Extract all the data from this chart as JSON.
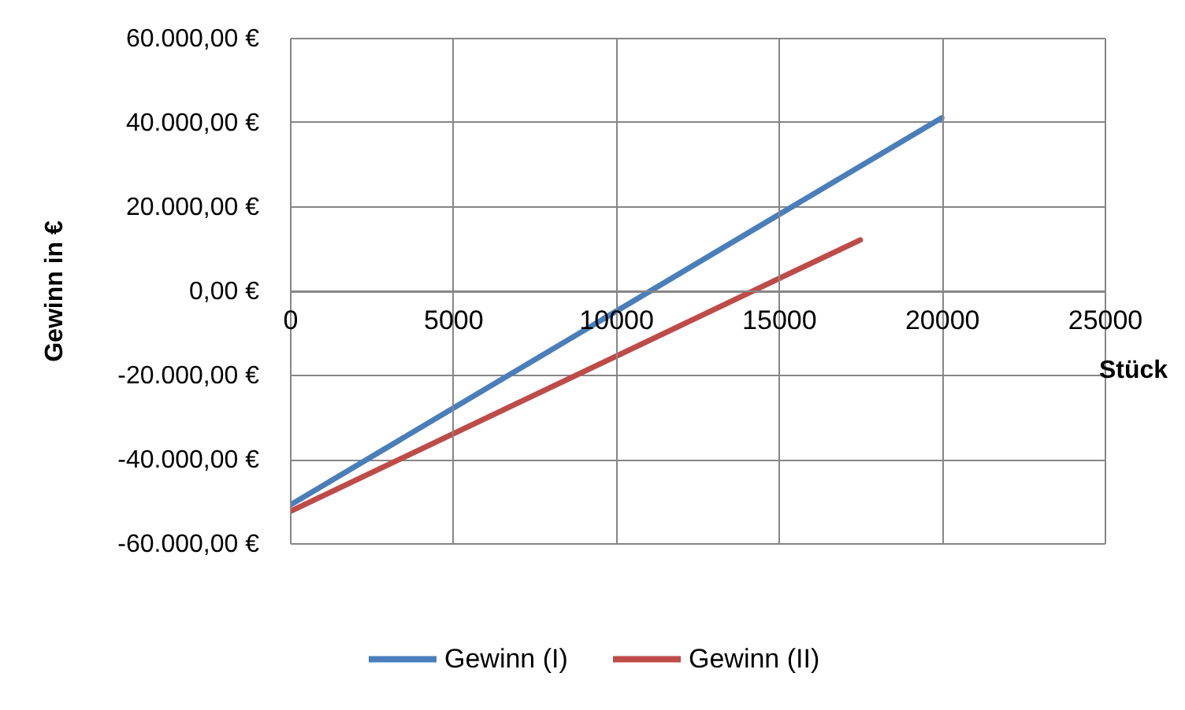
{
  "chart_data": {
    "type": "line",
    "xlabel": "Stück",
    "ylabel": "Gewinn in €",
    "series": [
      {
        "name": "Gewinn (I)",
        "color": "#4a7ebb",
        "x": [
          0,
          20000
        ],
        "values": [
          -51000,
          41000
        ]
      },
      {
        "name": "Gewinn (II)",
        "color": "#be4b48",
        "x": [
          0,
          17500
        ],
        "values": [
          -52500,
          12000
        ]
      }
    ],
    "xlim": [
      0,
      25000
    ],
    "xticks": [
      0,
      5000,
      10000,
      15000,
      20000,
      25000
    ],
    "ylim": [
      -60000,
      60000
    ],
    "yticks": [
      {
        "value": -60000,
        "label": "-60.000,00 €"
      },
      {
        "value": -40000,
        "label": "-40.000,00 €"
      },
      {
        "value": -20000,
        "label": "-20.000,00 €"
      },
      {
        "value": 0,
        "label": "0,00 €"
      },
      {
        "value": 20000,
        "label": "20.000,00 €"
      },
      {
        "value": 40000,
        "label": "40.000,00 €"
      },
      {
        "value": 60000,
        "label": "60.000,00 €"
      }
    ],
    "grid": true,
    "legend": "bottom",
    "marker": "none",
    "line_style": "solid"
  }
}
